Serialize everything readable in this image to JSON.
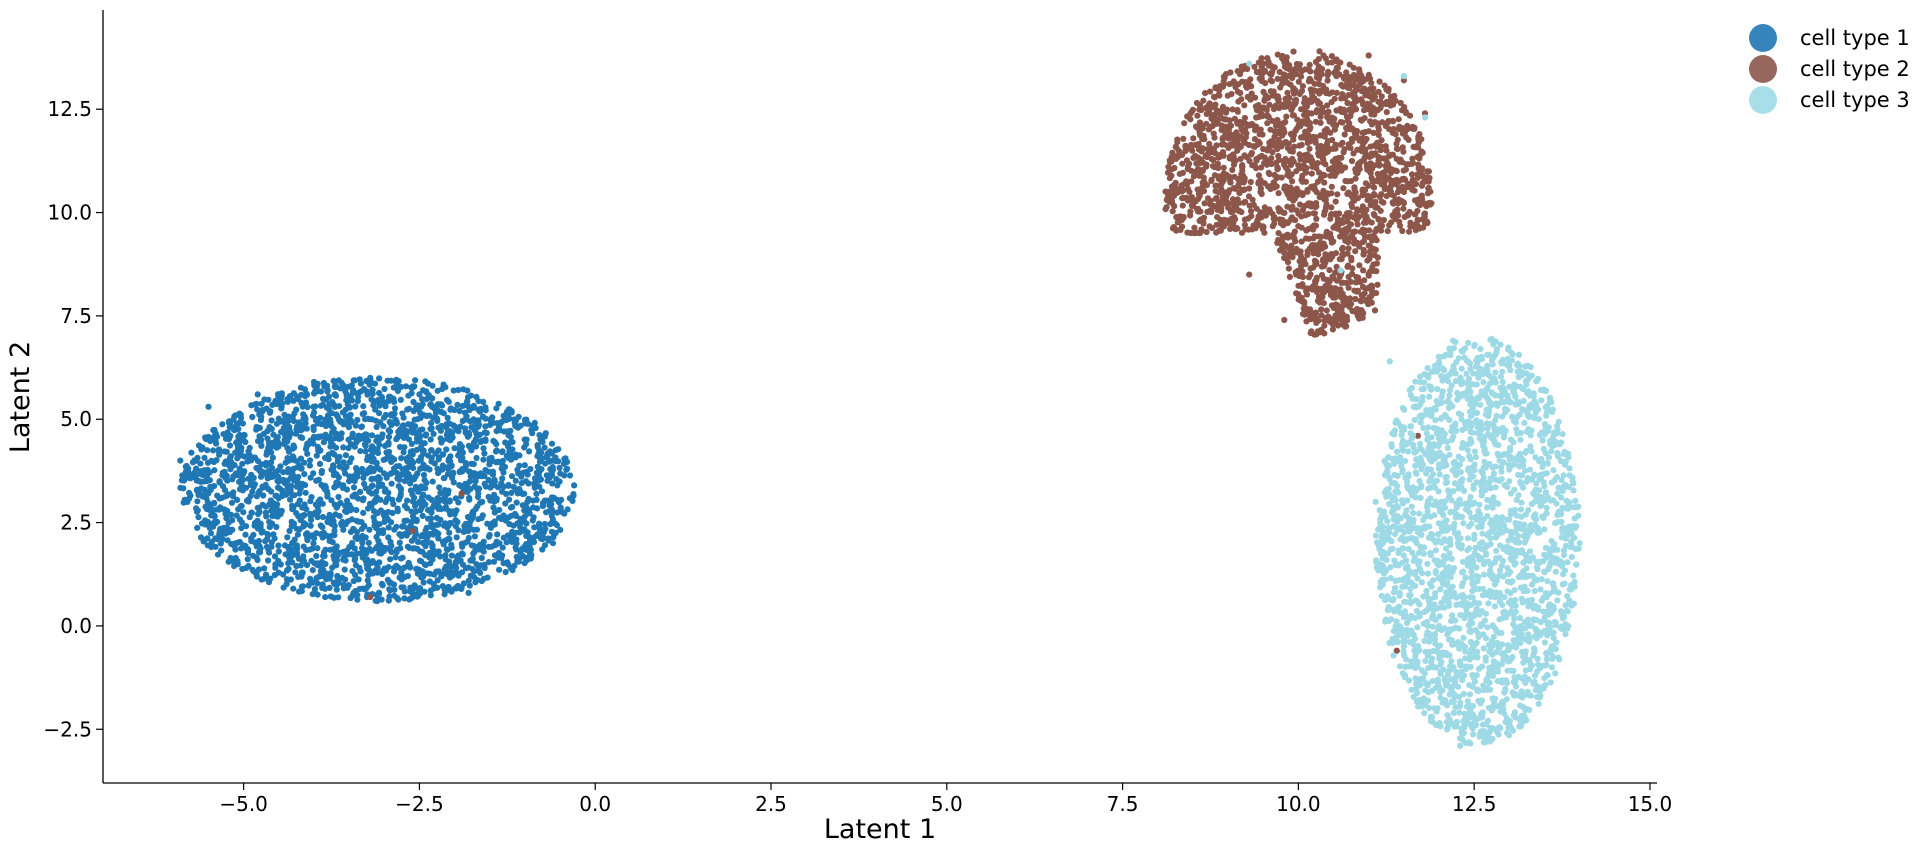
{
  "chart_data": {
    "type": "scatter",
    "title": "",
    "xlabel": "Latent 1",
    "ylabel": "Latent 2",
    "xlim": [
      -7.0,
      15.1
    ],
    "ylim": [
      -3.8,
      14.9
    ],
    "xticks": [
      -5.0,
      -2.5,
      0.0,
      2.5,
      5.0,
      7.5,
      10.0,
      12.5,
      15.0
    ],
    "xtick_labels": [
      "−5.0",
      "−2.5",
      "0.0",
      "2.5",
      "5.0",
      "7.5",
      "10.0",
      "12.5",
      "15.0"
    ],
    "yticks": [
      -2.5,
      0.0,
      2.5,
      5.0,
      7.5,
      10.0,
      12.5
    ],
    "ytick_labels": [
      "−2.5",
      "0.0",
      "2.5",
      "5.0",
      "7.5",
      "10.0",
      "12.5"
    ],
    "grid": false,
    "legend_position": "top-right outside",
    "series": [
      {
        "name": "cell type 1",
        "color": "#1f77b4",
        "cluster": {
          "x_range": [
            -5.9,
            -0.3
          ],
          "y_range": [
            0.6,
            6.0
          ],
          "center": [
            -3.1,
            3.3
          ],
          "approx_points": 2500
        },
        "points": [
          [
            -5.9,
            4.0
          ],
          [
            -5.5,
            5.3
          ],
          [
            -4.8,
            5.6
          ],
          [
            -4.0,
            5.9
          ],
          [
            -3.2,
            6.0
          ],
          [
            -2.5,
            5.6
          ],
          [
            -1.8,
            5.3
          ],
          [
            -1.0,
            4.9
          ],
          [
            -0.4,
            3.8
          ],
          [
            -0.3,
            3.4
          ],
          [
            -0.6,
            2.0
          ],
          [
            -1.2,
            1.4
          ],
          [
            -1.8,
            0.8
          ],
          [
            -2.6,
            0.8
          ],
          [
            -3.1,
            0.6
          ],
          [
            -3.8,
            1.2
          ],
          [
            -4.5,
            1.8
          ],
          [
            -5.3,
            2.1
          ],
          [
            -5.8,
            3.0
          ],
          [
            -3.5,
            3.5
          ],
          [
            -2.5,
            3.0
          ],
          [
            -1.5,
            2.2
          ],
          [
            -4.3,
            4.1
          ],
          [
            -2.0,
            4.3
          ]
        ]
      },
      {
        "name": "cell type 2",
        "color": "#8c564b",
        "cluster": {
          "x_range": [
            8.1,
            11.9
          ],
          "y_range": [
            7.0,
            13.9
          ],
          "center": [
            9.9,
            11.0
          ],
          "approx_points": 2000
        },
        "points": [
          [
            8.2,
            10.3
          ],
          [
            8.4,
            11.5
          ],
          [
            8.8,
            12.8
          ],
          [
            9.5,
            13.6
          ],
          [
            10.3,
            13.9
          ],
          [
            11.0,
            13.8
          ],
          [
            11.5,
            13.2
          ],
          [
            11.8,
            12.4
          ],
          [
            11.4,
            11.0
          ],
          [
            11.0,
            9.2
          ],
          [
            10.9,
            8.0
          ],
          [
            10.3,
            7.1
          ],
          [
            9.8,
            7.4
          ],
          [
            9.3,
            8.5
          ],
          [
            8.6,
            9.5
          ],
          [
            9.7,
            11.1
          ],
          [
            10.4,
            10.2
          ],
          [
            9.2,
            12.0
          ],
          [
            11.7,
            4.6
          ],
          [
            11.4,
            -0.6
          ],
          [
            -3.2,
            0.7
          ],
          [
            -2.6,
            2.3
          ],
          [
            -1.9,
            3.2
          ]
        ]
      },
      {
        "name": "cell type 3",
        "color": "#9edae5",
        "cluster": {
          "x_range": [
            11.1,
            14.0
          ],
          "y_range": [
            -2.9,
            7.0
          ],
          "center": [
            12.6,
            2.1
          ],
          "approx_points": 2300
        },
        "points": [
          [
            11.3,
            6.4
          ],
          [
            12.2,
            6.9
          ],
          [
            13.0,
            6.3
          ],
          [
            13.6,
            5.2
          ],
          [
            13.9,
            3.5
          ],
          [
            14.0,
            2.0
          ],
          [
            13.8,
            0.5
          ],
          [
            13.4,
            -1.5
          ],
          [
            12.8,
            -2.5
          ],
          [
            12.3,
            -2.9
          ],
          [
            11.9,
            -2.2
          ],
          [
            11.5,
            -0.5
          ],
          [
            11.2,
            1.0
          ],
          [
            11.1,
            3.0
          ],
          [
            11.5,
            4.8
          ],
          [
            12.5,
            2.1
          ],
          [
            12.0,
            0.0
          ],
          [
            13.0,
            3.5
          ],
          [
            11.8,
            12.3
          ],
          [
            11.5,
            13.3
          ],
          [
            9.3,
            13.6
          ],
          [
            10.6,
            8.6
          ]
        ]
      }
    ]
  }
}
